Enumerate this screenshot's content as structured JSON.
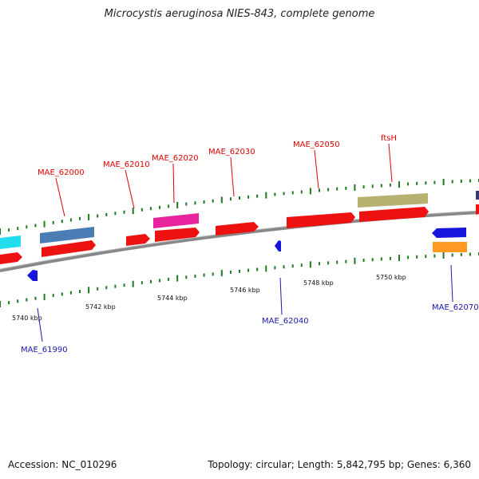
{
  "title": "Microcystis aeruginosa NIES-843, complete genome",
  "footer": {
    "accession": "Accession: NC_010296",
    "summary": "Topology: circular; Length: 5,842,795 bp; Genes: 6,360"
  },
  "colors": {
    "forward_gene": "#ee1111",
    "reverse_gene": "#1515dd",
    "backbone": "#888888",
    "tick": "#1f7a1f",
    "label_red": "#dd0000",
    "label_blue": "#1a1aa8"
  },
  "scale_labels": [
    "5740 kbp",
    "5742 kbp",
    "5744 kbp",
    "5746 kbp",
    "5748 kbp",
    "5750 kbp"
  ],
  "gene_labels": {
    "mae_61990": "MAE_61990",
    "mae_62000": "MAE_62000",
    "mae_62010": "MAE_62010",
    "mae_62020": "MAE_62020",
    "mae_62030": "MAE_62030",
    "mae_62040": "MAE_62040",
    "mae_62050": "MAE_62050",
    "ftsh": "ftsH",
    "mae_62070": "MAE_62070"
  }
}
